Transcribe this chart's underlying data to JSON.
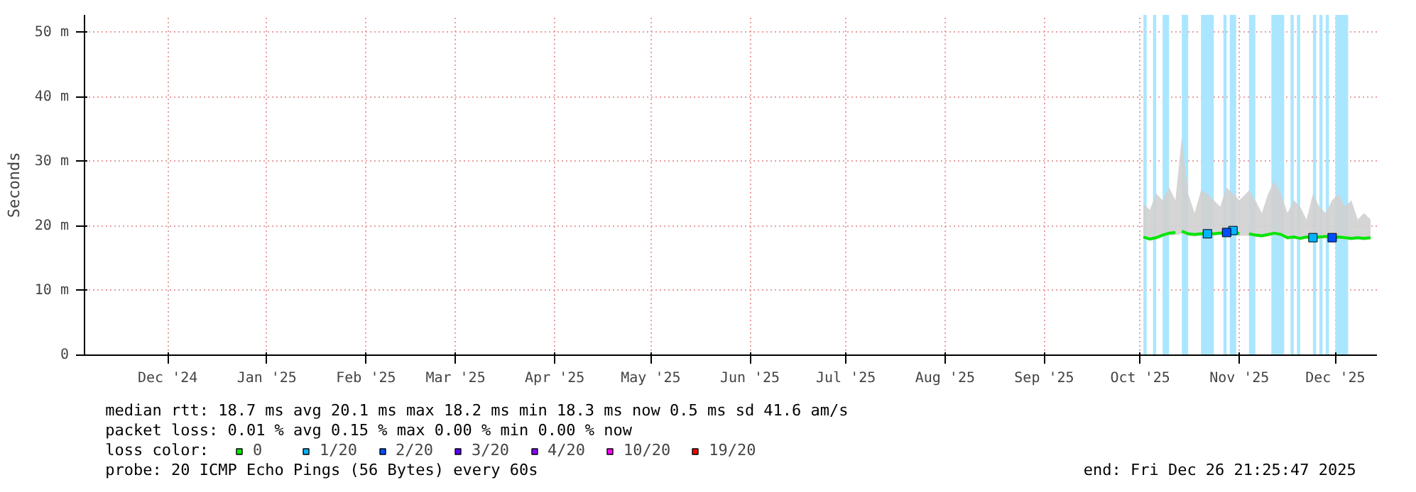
{
  "chart_data": {
    "type": "line",
    "ylabel": "Seconds",
    "legend_title": "loss color:",
    "legend": "bottom",
    "grid": true,
    "xlim": [
      "2024-11-19",
      "2025-12-28"
    ],
    "ylim": [
      0,
      52.7
    ],
    "yticks": [
      0,
      {
        "value": 10,
        "label": "10 m"
      },
      {
        "value": 20,
        "label": "20 m"
      },
      {
        "value": 30,
        "label": "30 m"
      },
      {
        "value": 40,
        "label": "40 m"
      },
      {
        "value": 50,
        "label": "50 m"
      }
    ],
    "xticks": [
      {
        "value": "2024-12-15",
        "label": "Dec '24"
      },
      {
        "value": "2025-01-15",
        "label": "Jan '25"
      },
      {
        "value": "2025-02-15",
        "label": "Feb '25"
      },
      {
        "value": "2025-03-15",
        "label": "Mar '25"
      },
      {
        "value": "2025-04-15",
        "label": "Apr '25"
      },
      {
        "value": "2025-05-15",
        "label": "May '25"
      },
      {
        "value": "2025-06-15",
        "label": "Jun '25"
      },
      {
        "value": "2025-07-15",
        "label": "Jul '25"
      },
      {
        "value": "2025-08-15",
        "label": "Aug '25"
      },
      {
        "value": "2025-09-15",
        "label": "Sep '25"
      },
      {
        "value": "2025-10-15",
        "label": "Oct '25"
      },
      {
        "value": "2025-11-15",
        "label": "Nov '25"
      },
      {
        "value": "2025-12-15",
        "label": "Dec '25"
      }
    ],
    "series": [
      {
        "name": "0",
        "color": "#00e600",
        "x": [
          "2025-10-16",
          "2025-10-18",
          "2025-10-20",
          "2025-10-22",
          "2025-10-24",
          "2025-10-26",
          "2025-10-27",
          "2025-10-28",
          "2025-10-30",
          "2025-11-01",
          "2025-11-03",
          "2025-11-05",
          "2025-11-07",
          "2025-11-09",
          "2025-11-11",
          "2025-11-13",
          "2025-11-15",
          "2025-11-16",
          "2025-11-18",
          "2025-11-20",
          "2025-11-22",
          "2025-11-24",
          "2025-11-26",
          "2025-11-28",
          "2025-11-30",
          "2025-12-02",
          "2025-12-04",
          "2025-12-06",
          "2025-12-08",
          "2025-12-10",
          "2025-12-12",
          "2025-12-14",
          "2025-12-16",
          "2025-12-18",
          "2025-12-20",
          "2025-12-22",
          "2025-12-24",
          "2025-12-26"
        ],
        "values": [
          18.3,
          18.0,
          18.2,
          18.6,
          18.9,
          19.0,
          null,
          19.2,
          18.8,
          18.7,
          18.8,
          18.9,
          18.8,
          18.9,
          19.0,
          19.3,
          18.8,
          null,
          18.8,
          18.6,
          18.5,
          18.7,
          18.9,
          18.7,
          18.2,
          18.3,
          18.1,
          18.3,
          18.2,
          18.3,
          18.4,
          18.2,
          18.3,
          18.2,
          18.1,
          18.2,
          18.1,
          18.2
        ],
        "lower": [
          18.0,
          17.7,
          17.9,
          18.3,
          18.5,
          18.6,
          null,
          18.8,
          18.5,
          18.4,
          18.5,
          18.6,
          18.5,
          18.6,
          18.6,
          18.9,
          18.5,
          null,
          18.5,
          18.3,
          18.2,
          18.4,
          18.6,
          18.4,
          17.9,
          18.0,
          17.8,
          18.0,
          17.9,
          18.0,
          18.1,
          17.9,
          18.0,
          17.9,
          17.8,
          17.9,
          17.8,
          17.9
        ],
        "upper": [
          23.5,
          22.5,
          25,
          24,
          26,
          24,
          null,
          33.8,
          25,
          22,
          25.5,
          25,
          24,
          23,
          26,
          25,
          24,
          null,
          25.5,
          24,
          22,
          25,
          27,
          25,
          22,
          24,
          23,
          21,
          25,
          23,
          22,
          24,
          25,
          23,
          24,
          21,
          22,
          21
        ]
      },
      {
        "name": "1/20",
        "type": "scatter",
        "marker": "square",
        "color": "#00b4ff",
        "x": [
          "2025-11-05",
          "2025-11-13",
          "2025-12-08"
        ],
        "values": [
          18.8,
          19.3,
          18.2
        ]
      },
      {
        "name": "2/20",
        "type": "scatter",
        "marker": "square",
        "color": "#0050ff",
        "x": [
          "2025-11-11",
          "2025-12-14"
        ],
        "values": [
          19.0,
          18.2
        ]
      },
      {
        "name": "3/20",
        "type": "scatter",
        "marker": "square",
        "color": "#5a00ff"
      },
      {
        "name": "4/20",
        "type": "scatter",
        "marker": "square",
        "color": "#8c00ff"
      },
      {
        "name": "10/20",
        "type": "scatter",
        "marker": "square",
        "color": "#ff00ff"
      },
      {
        "name": "19/20",
        "type": "scatter",
        "marker": "square",
        "color": "#ff0000"
      }
    ],
    "bands": [
      {
        "axis": "x",
        "from": "2025-10-16",
        "to": "2025-10-17",
        "color": "#aae6ff"
      },
      {
        "axis": "x",
        "from": "2025-10-19",
        "to": "2025-10-20",
        "color": "#aae6ff"
      },
      {
        "axis": "x",
        "from": "2025-10-22",
        "to": "2025-10-24",
        "color": "#aae6ff"
      },
      {
        "axis": "x",
        "from": "2025-10-28",
        "to": "2025-10-30",
        "color": "#aae6ff"
      },
      {
        "axis": "x",
        "from": "2025-11-03",
        "to": "2025-11-07",
        "color": "#aae6ff"
      },
      {
        "axis": "x",
        "from": "2025-11-10",
        "to": "2025-11-11",
        "color": "#aae6ff"
      },
      {
        "axis": "x",
        "from": "2025-11-12",
        "to": "2025-11-14",
        "color": "#aae6ff"
      },
      {
        "axis": "x",
        "from": "2025-11-18",
        "to": "2025-11-20",
        "color": "#aae6ff"
      },
      {
        "axis": "x",
        "from": "2025-11-25",
        "to": "2025-11-29",
        "color": "#aae6ff"
      },
      {
        "axis": "x",
        "from": "2025-12-01",
        "to": "2025-12-02",
        "color": "#aae6ff"
      },
      {
        "axis": "x",
        "from": "2025-12-03",
        "to": "2025-12-04",
        "color": "#aae6ff"
      },
      {
        "axis": "x",
        "from": "2025-12-08",
        "to": "2025-12-09",
        "color": "#aae6ff"
      },
      {
        "axis": "x",
        "from": "2025-12-10",
        "to": "2025-12-11",
        "color": "#aae6ff"
      },
      {
        "axis": "x",
        "from": "2025-12-12",
        "to": "2025-12-13",
        "color": "#aae6ff"
      },
      {
        "axis": "x",
        "from": "2025-12-15",
        "to": "2025-12-19",
        "color": "#aae6ff"
      }
    ],
    "annotations": [
      "median rtt:  18.7 ms avg  20.1 ms max  18.2 ms min  18.3 ms now  0.5 ms sd  41.6   am/s",
      "packet loss: 0.01 % avg  0.15 % max  0.00 % min  0.00 % now",
      "probe:       20 ICMP Echo Pings (56 Bytes) every 60s",
      "end: Fri Dec 26 21:25:47 2025"
    ]
  }
}
